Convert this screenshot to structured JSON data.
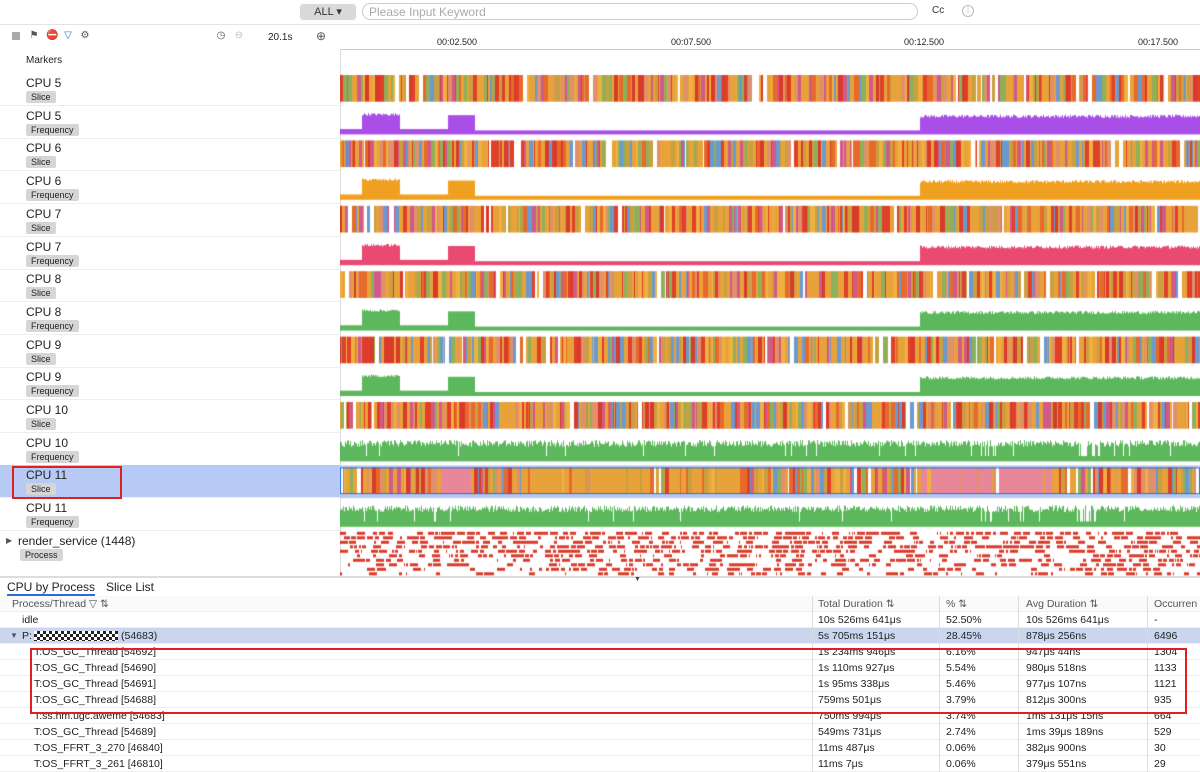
{
  "topbar": {
    "filter_select": "ALL",
    "search_placeholder": "Please Input Keyword",
    "cc_label": "Cc",
    "info_icon": "info-icon"
  },
  "toolbar": {
    "icons": [
      "stop-square-icon",
      "flag-icon",
      "no-entry-icon",
      "filter-icon",
      "gear-icon"
    ],
    "zoom_value": "20.1s",
    "timer_icon": "timer-icon",
    "minus_icon": "zoom-out-icon",
    "plus_icon": "add-icon"
  },
  "ruler": {
    "ticks": [
      "00:02.500",
      "00:07.500",
      "00:12.500",
      "00:17.500"
    ]
  },
  "markers_label": "Markers",
  "tracks": [
    {
      "name": "CPU 5",
      "tag": "Slice",
      "kind": "slice",
      "color": "#e8a23a"
    },
    {
      "name": "CPU 5",
      "tag": "Frequency",
      "kind": "freq",
      "color": "#a94fe8"
    },
    {
      "name": "CPU 6",
      "tag": "Slice",
      "kind": "slice",
      "color": "#e8a23a"
    },
    {
      "name": "CPU 6",
      "tag": "Frequency",
      "kind": "freq",
      "color": "#f0a020"
    },
    {
      "name": "CPU 7",
      "tag": "Slice",
      "kind": "slice",
      "color": "#e8a23a"
    },
    {
      "name": "CPU 7",
      "tag": "Frequency",
      "kind": "freq",
      "color": "#e84a72"
    },
    {
      "name": "CPU 8",
      "tag": "Slice",
      "kind": "slice",
      "color": "#e8a23a"
    },
    {
      "name": "CPU 8",
      "tag": "Frequency",
      "kind": "freq",
      "color": "#5db85d"
    },
    {
      "name": "CPU 9",
      "tag": "Slice",
      "kind": "slice",
      "color": "#e8a23a"
    },
    {
      "name": "CPU 9",
      "tag": "Frequency",
      "kind": "freq",
      "color": "#5db85d"
    },
    {
      "name": "CPU 10",
      "tag": "Slice",
      "kind": "slice",
      "color": "#e8a23a"
    },
    {
      "name": "CPU 10",
      "tag": "Frequency",
      "kind": "freq2",
      "color": "#5db85d"
    },
    {
      "name": "CPU 11",
      "tag": "Slice",
      "kind": "slice11",
      "color": "#e8a23a",
      "selected": true
    },
    {
      "name": "CPU 11",
      "tag": "Frequency",
      "kind": "freq2",
      "color": "#5db85d"
    }
  ],
  "process_row": {
    "name": "render_service (1448)",
    "tag": "Process",
    "color": "#d93a2a"
  },
  "selection_color": "#b7c9f5",
  "highlight_color": "#e02020",
  "tabs": [
    "CPU by Process",
    "Slice List"
  ],
  "table": {
    "headers": [
      "Process/Thread",
      "Total Duration",
      "%",
      "Avg Duration",
      "Occurren"
    ],
    "rows": [
      {
        "name": "idle",
        "total": "10s 526ms 641μs",
        "pct": "52.50%",
        "avg": "10s 526ms 641μs",
        "occ": "-"
      },
      {
        "name": "P:",
        "pid": "(54683)",
        "total": "5s 705ms 151μs",
        "pct": "28.45%",
        "avg": "878μs 256ns",
        "occ": "6496",
        "group": true
      },
      {
        "name": "T:OS_GC_Thread [54692]",
        "total": "1s 234ms 946μs",
        "pct": "6.16%",
        "avg": "947μs 44ns",
        "occ": "1304"
      },
      {
        "name": "T:OS_GC_Thread [54690]",
        "total": "1s 110ms 927μs",
        "pct": "5.54%",
        "avg": "980μs 518ns",
        "occ": "1133"
      },
      {
        "name": "T:OS_GC_Thread [54691]",
        "total": "1s 95ms 338μs",
        "pct": "5.46%",
        "avg": "977μs 107ns",
        "occ": "1121"
      },
      {
        "name": "T:OS_GC_Thread [54688]",
        "total": "759ms 501μs",
        "pct": "3.79%",
        "avg": "812μs 300ns",
        "occ": "935"
      },
      {
        "name": "T:ss.hm.ugc.aweme [54683]",
        "total": "750ms 994μs",
        "pct": "3.74%",
        "avg": "1ms 131μs 15ns",
        "occ": "664"
      },
      {
        "name": "T:OS_GC_Thread [54689]",
        "total": "549ms 731μs",
        "pct": "2.74%",
        "avg": "1ms 39μs 189ns",
        "occ": "529"
      },
      {
        "name": "T:OS_FFRT_3_270 [46840]",
        "total": "11ms 487μs",
        "pct": "0.06%",
        "avg": "382μs 900ns",
        "occ": "30"
      },
      {
        "name": "T:OS_FFRT_3_261 [46810]",
        "total": "11ms 7μs",
        "pct": "0.06%",
        "avg": "379μs 551ns",
        "occ": "29"
      }
    ]
  }
}
